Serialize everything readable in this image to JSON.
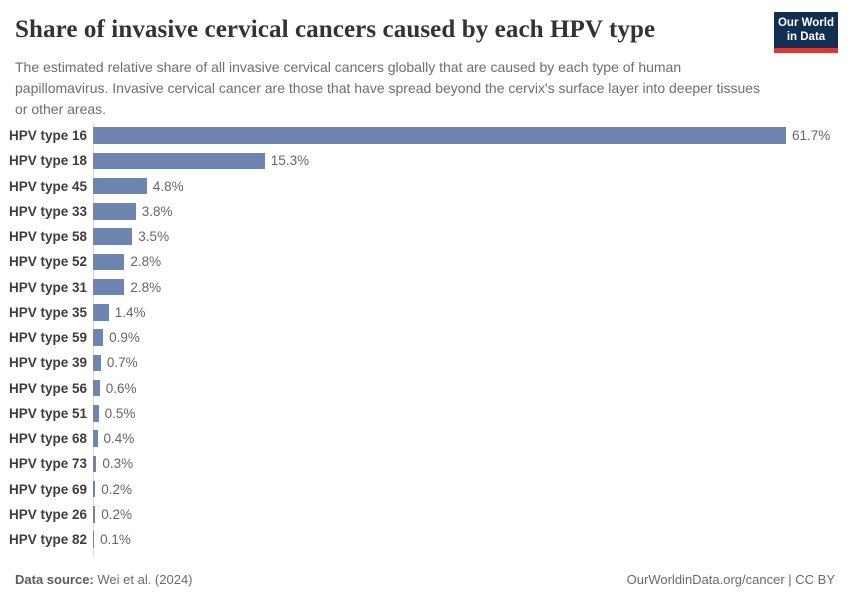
{
  "header": {
    "title": "Share of invasive cervical cancers caused by each HPV type",
    "subtitle": "The estimated relative share of all invasive cervical cancers globally that are caused by each type of human papillomavirus. Invasive cervical cancer are those that have spread beyond the cervix's surface layer into deeper tissues or other areas.",
    "logo": {
      "line1": "Our World",
      "line2": "in Data",
      "bg_color": "#132e53",
      "accent_color": "#d73a31"
    }
  },
  "chart_data": {
    "type": "bar",
    "orientation": "horizontal",
    "title": "Share of invasive cervical cancers caused by each HPV type",
    "categories": [
      "HPV type 16",
      "HPV type 18",
      "HPV type 45",
      "HPV type 33",
      "HPV type 58",
      "HPV type 52",
      "HPV type 31",
      "HPV type 35",
      "HPV type 59",
      "HPV type 39",
      "HPV type 56",
      "HPV type 51",
      "HPV type 68",
      "HPV type 73",
      "HPV type 69",
      "HPV type 26",
      "HPV type 82"
    ],
    "values": [
      61.7,
      15.3,
      4.8,
      3.8,
      3.5,
      2.8,
      2.8,
      1.4,
      0.9,
      0.7,
      0.6,
      0.5,
      0.4,
      0.3,
      0.2,
      0.2,
      0.1
    ],
    "value_labels": [
      "61.7%",
      "15.3%",
      "4.8%",
      "3.8%",
      "3.5%",
      "2.8%",
      "2.8%",
      "1.4%",
      "0.9%",
      "0.7%",
      "0.6%",
      "0.5%",
      "0.4%",
      "0.3%",
      "0.2%",
      "0.2%",
      "0.1%"
    ],
    "unit": "%",
    "xlim": [
      0,
      61.7
    ],
    "grid": false,
    "legend": "none",
    "bar_color": "#6d85b0",
    "axis_color": "#dcdcdc"
  },
  "footer": {
    "datasource_label": "Data source:",
    "datasource_value": "Wei et al. (2024)",
    "right_text": "OurWorldinData.org/cancer | CC BY"
  }
}
